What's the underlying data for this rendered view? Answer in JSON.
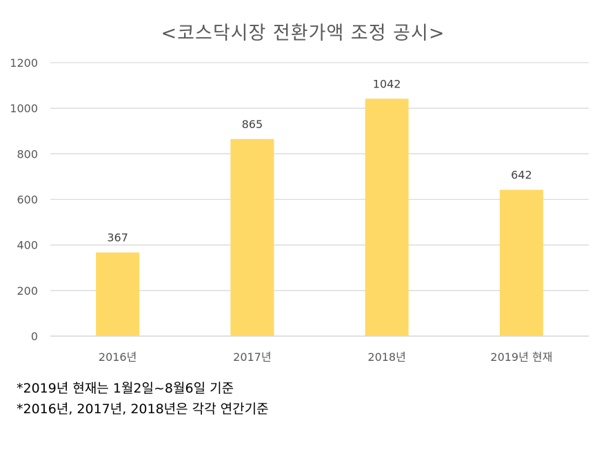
{
  "chart_data": {
    "type": "bar",
    "title": "<코스닥시장 전환가액 조정 공시>",
    "categories": [
      "2016년",
      "2017년",
      "2018년",
      "2019년 현재"
    ],
    "values": [
      367,
      865,
      1042,
      642
    ],
    "ylim": [
      0,
      1200
    ],
    "yticks": [
      0,
      200,
      400,
      600,
      800,
      1000,
      1200
    ],
    "grid": true,
    "bar_color": "#FFD966",
    "grid_color": "#D9D9D9",
    "text_color": "#595959"
  },
  "footnotes": [
    "*2019년 현재는 1월2일~8월6일 기준",
    "*2016년, 2017년, 2018년은 각각 연간기준"
  ]
}
